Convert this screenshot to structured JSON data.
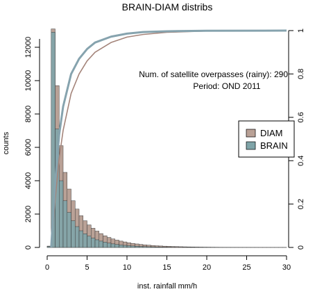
{
  "chart_data": {
    "type": "bar",
    "title": "BRAIN-DIAM distribs",
    "xlabel": "inst. rainfall mm/h",
    "ylabel": "counts",
    "xlim": [
      0,
      30
    ],
    "ylim_left": [
      0,
      13000
    ],
    "ylim_right": [
      0,
      1
    ],
    "x_ticks": [
      "0",
      "5",
      "10",
      "15",
      "20",
      "25",
      "30"
    ],
    "y_ticks_left": [
      "0",
      "2000",
      "4000",
      "6000",
      "8000",
      "10000",
      "12000"
    ],
    "y_ticks_right": [
      "0",
      "0.2",
      "0.4",
      "0.6",
      "0.8",
      "1"
    ],
    "bin_width": 0.5,
    "bin_starts": [
      0,
      0.5,
      1,
      1.5,
      2,
      2.5,
      3,
      3.5,
      4,
      4.5,
      5,
      5.5,
      6,
      6.5,
      7,
      7.5,
      8,
      8.5,
      9,
      9.5,
      10,
      10.5,
      11,
      11.5,
      12,
      12.5,
      13,
      13.5,
      14,
      14.5,
      15,
      15.5,
      16,
      16.5,
      17,
      17.5,
      18,
      18.5,
      19,
      19.5,
      20,
      20.5,
      21,
      21.5,
      22,
      22.5,
      23,
      23.5,
      24,
      24.5,
      25,
      25.5,
      26,
      26.5,
      27,
      27.5,
      28,
      28.5,
      29,
      29.5
    ],
    "series": [
      {
        "name": "DIAM",
        "color": "#b9a196",
        "values": [
          80,
          13100,
          9700,
          6100,
          4500,
          3500,
          2800,
          2300,
          1900,
          1600,
          1350,
          1150,
          980,
          830,
          700,
          600,
          510,
          440,
          380,
          330,
          280,
          240,
          210,
          180,
          155,
          135,
          115,
          100,
          88,
          76,
          66,
          57,
          50,
          44,
          38,
          33,
          29,
          25,
          22,
          19,
          17,
          15,
          13,
          11,
          10,
          9,
          8,
          7,
          6,
          5,
          5,
          4,
          4,
          3,
          3,
          3,
          2,
          2,
          2,
          2
        ]
      },
      {
        "name": "BRAIN",
        "color": "#7fa4a8",
        "values": [
          60,
          12900,
          7100,
          4000,
          2800,
          2100,
          1600,
          1250,
          1000,
          820,
          680,
          560,
          460,
          380,
          315,
          260,
          215,
          180,
          150,
          125,
          105,
          88,
          74,
          62,
          52,
          44,
          37,
          31,
          26,
          22,
          19,
          16,
          13,
          11,
          10,
          8,
          7,
          6,
          5,
          4,
          4,
          3,
          3,
          2,
          2,
          2,
          2,
          1,
          1,
          1,
          1,
          1,
          1,
          1,
          1,
          1,
          1,
          1,
          1,
          1
        ]
      }
    ],
    "cdf_curves": [
      {
        "name": "DIAM",
        "color": "#a4847a",
        "x": [
          0.5,
          1,
          1.5,
          2,
          3,
          4,
          5,
          6,
          8,
          10,
          12,
          15,
          20,
          30
        ],
        "y": [
          0,
          0.22,
          0.41,
          0.54,
          0.71,
          0.8,
          0.86,
          0.9,
          0.945,
          0.97,
          0.982,
          0.992,
          0.998,
          1.0
        ]
      },
      {
        "name": "BRAIN",
        "color": "#86a3ae",
        "x": [
          0.5,
          1,
          1.5,
          2,
          3,
          4,
          5,
          6,
          8,
          10,
          12,
          15,
          20,
          30
        ],
        "y": [
          0,
          0.3,
          0.52,
          0.65,
          0.8,
          0.87,
          0.915,
          0.945,
          0.972,
          0.986,
          0.993,
          0.997,
          0.999,
          1.0
        ]
      }
    ],
    "legend_position": "right",
    "annotations": {
      "overpasses": "Num. of satellite overpasses (rainy):  290",
      "period": "Period: OND 2011"
    }
  }
}
